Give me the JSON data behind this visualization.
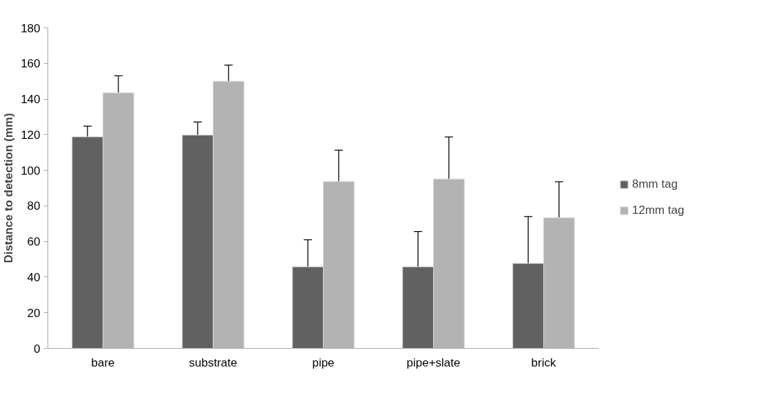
{
  "chart_data": {
    "type": "bar",
    "ylabel": "Distance to detection (mm)",
    "categories": [
      "bare",
      "substrate",
      "pipe",
      "pipe+slate",
      "brick"
    ],
    "series": [
      {
        "name": "8mm tag",
        "color": "#616161",
        "values": [
          118.8,
          119.8,
          45.8,
          45.8,
          47.7
        ],
        "errors": [
          [
            118.8,
            124.8
          ],
          [
            119.8,
            127.1
          ],
          [
            45.8,
            61
          ],
          [
            45.8,
            65.6
          ],
          [
            47.7,
            74
          ]
        ]
      },
      {
        "name": "12mm tag",
        "color": "#b3b3b3",
        "values": [
          143.5,
          150,
          93.7,
          95.1,
          73.3
        ],
        "errors": [
          [
            143.5,
            153.1
          ],
          [
            150,
            159.1
          ],
          [
            93.7,
            111.3
          ],
          [
            95.1,
            118.7
          ],
          [
            73.3,
            93.5
          ]
        ]
      }
    ],
    "ylim": [
      0,
      180
    ],
    "yticks": [
      0,
      20,
      40,
      60,
      80,
      100,
      120,
      140,
      160,
      180
    ],
    "grid": false,
    "legend": "right"
  }
}
